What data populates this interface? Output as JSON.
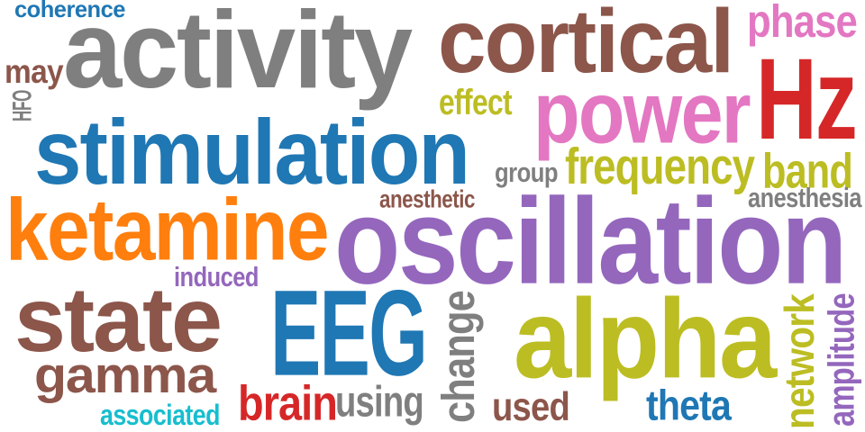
{
  "palette": {
    "gray": "#7f7f7f",
    "brown": "#8c564b",
    "pink": "#e377c2",
    "red": "#d62728",
    "olive": "#bcbd22",
    "blue": "#1f77b4",
    "orange": "#ff7f0e",
    "purple": "#9467bd",
    "cyan": "#17becf"
  },
  "words": [
    {
      "text": "coherence",
      "color": "#1f77b4",
      "orientation": "horizontal"
    },
    {
      "text": "activity",
      "color": "#7f7f7f",
      "orientation": "horizontal"
    },
    {
      "text": "cortical",
      "color": "#8c564b",
      "orientation": "horizontal"
    },
    {
      "text": "phase",
      "color": "#e377c2",
      "orientation": "horizontal"
    },
    {
      "text": "may",
      "color": "#8c564b",
      "orientation": "horizontal"
    },
    {
      "text": "HFO",
      "color": "#7f7f7f",
      "orientation": "vertical"
    },
    {
      "text": "Hz",
      "color": "#d62728",
      "orientation": "horizontal"
    },
    {
      "text": "effect",
      "color": "#bcbd22",
      "orientation": "horizontal"
    },
    {
      "text": "power",
      "color": "#e377c2",
      "orientation": "horizontal"
    },
    {
      "text": "stimulation",
      "color": "#1f77b4",
      "orientation": "horizontal"
    },
    {
      "text": "group",
      "color": "#7f7f7f",
      "orientation": "horizontal"
    },
    {
      "text": "frequency",
      "color": "#bcbd22",
      "orientation": "horizontal"
    },
    {
      "text": "band",
      "color": "#bcbd22",
      "orientation": "horizontal"
    },
    {
      "text": "anesthetic",
      "color": "#8c564b",
      "orientation": "horizontal"
    },
    {
      "text": "anesthesia",
      "color": "#7f7f7f",
      "orientation": "horizontal"
    },
    {
      "text": "ketamine",
      "color": "#ff7f0e",
      "orientation": "horizontal"
    },
    {
      "text": "oscillation",
      "color": "#9467bd",
      "orientation": "horizontal"
    },
    {
      "text": "induced",
      "color": "#9467bd",
      "orientation": "horizontal"
    },
    {
      "text": "state",
      "color": "#8c564b",
      "orientation": "horizontal"
    },
    {
      "text": "EEG",
      "color": "#1f77b4",
      "orientation": "horizontal"
    },
    {
      "text": "change",
      "color": "#7f7f7f",
      "orientation": "vertical"
    },
    {
      "text": "alpha",
      "color": "#bcbd22",
      "orientation": "horizontal"
    },
    {
      "text": "network",
      "color": "#bcbd22",
      "orientation": "vertical"
    },
    {
      "text": "amplitude",
      "color": "#9467bd",
      "orientation": "vertical"
    },
    {
      "text": "gamma",
      "color": "#8c564b",
      "orientation": "horizontal"
    },
    {
      "text": "brain",
      "color": "#d62728",
      "orientation": "horizontal"
    },
    {
      "text": "using",
      "color": "#7f7f7f",
      "orientation": "horizontal"
    },
    {
      "text": "used",
      "color": "#8c564b",
      "orientation": "horizontal"
    },
    {
      "text": "theta",
      "color": "#1f77b4",
      "orientation": "horizontal"
    },
    {
      "text": "associated",
      "color": "#17becf",
      "orientation": "horizontal"
    }
  ]
}
